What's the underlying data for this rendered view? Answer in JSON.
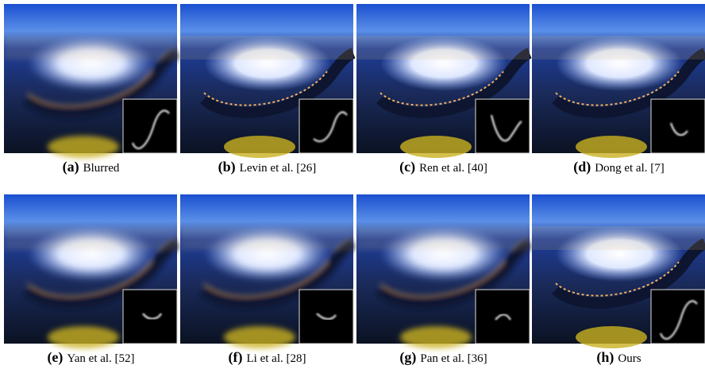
{
  "panels": [
    {
      "label": "(a)",
      "caption": "Blurred"
    },
    {
      "label": "(b)",
      "caption": "Levin et al. [26]"
    },
    {
      "label": "(c)",
      "caption": "Ren et al. [40]"
    },
    {
      "label": "(d)",
      "caption": "Dong et al. [7]"
    },
    {
      "label": "(e)",
      "caption": "Yan et al. [52]"
    },
    {
      "label": "(f)",
      "caption": "Li et al. [28]"
    },
    {
      "label": "(g)",
      "caption": "Pan et al. [36]"
    },
    {
      "label": "(h)",
      "caption": "Ours"
    }
  ]
}
